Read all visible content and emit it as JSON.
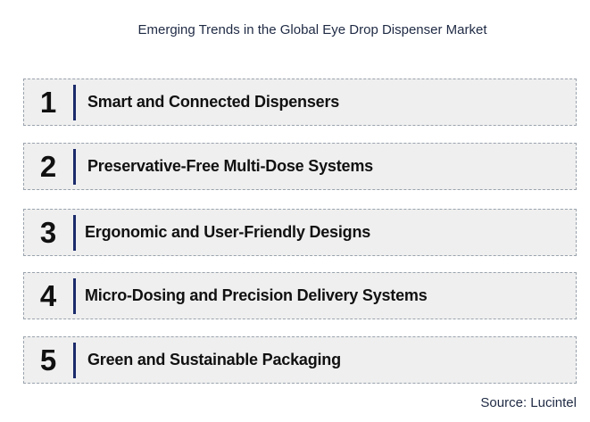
{
  "title": "Emerging Trends in the Global Eye Drop Dispenser Market",
  "trends": [
    {
      "number": "1",
      "label": "Smart and Connected Dispensers"
    },
    {
      "number": "2",
      "label": "Preservative-Free Multi-Dose Systems"
    },
    {
      "number": "3",
      "label": "Ergonomic and User-Friendly Designs"
    },
    {
      "number": "4",
      "label": "Micro-Dosing and Precision Delivery Systems"
    },
    {
      "number": "5",
      "label": "Green and Sustainable Packaging"
    }
  ],
  "source": "Source: Lucintel",
  "colors": {
    "accent_bar": "#1b2a6b",
    "box_background": "#efefef",
    "box_border": "#9aa3ad"
  }
}
